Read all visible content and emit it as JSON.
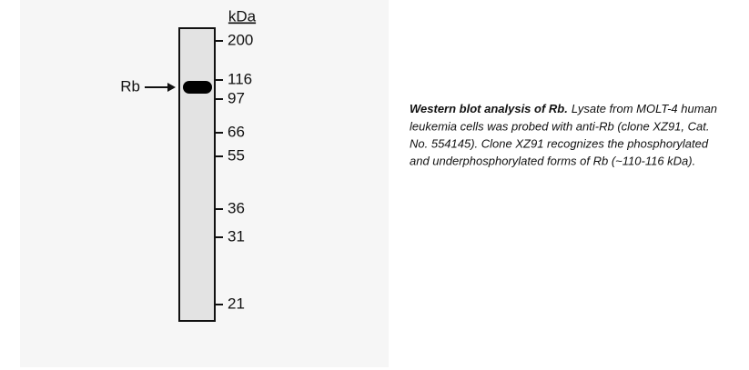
{
  "blot": {
    "unit": "kDa",
    "band_label": "Rb",
    "markers": [
      "200",
      "116",
      "97",
      "66",
      "55",
      "36",
      "31",
      "21"
    ]
  },
  "caption": {
    "title": "Western blot analysis of Rb.",
    "lines": [
      "Lysate from MOLT-4 human",
      "leukemia cells was probed with anti-Rb (clone XZ91,  Cat.",
      "No. 554145). Clone XZ91 recognizes the phosphorylated",
      "and underphosphorylated forms of Rb (~110-116 kDa)."
    ]
  }
}
